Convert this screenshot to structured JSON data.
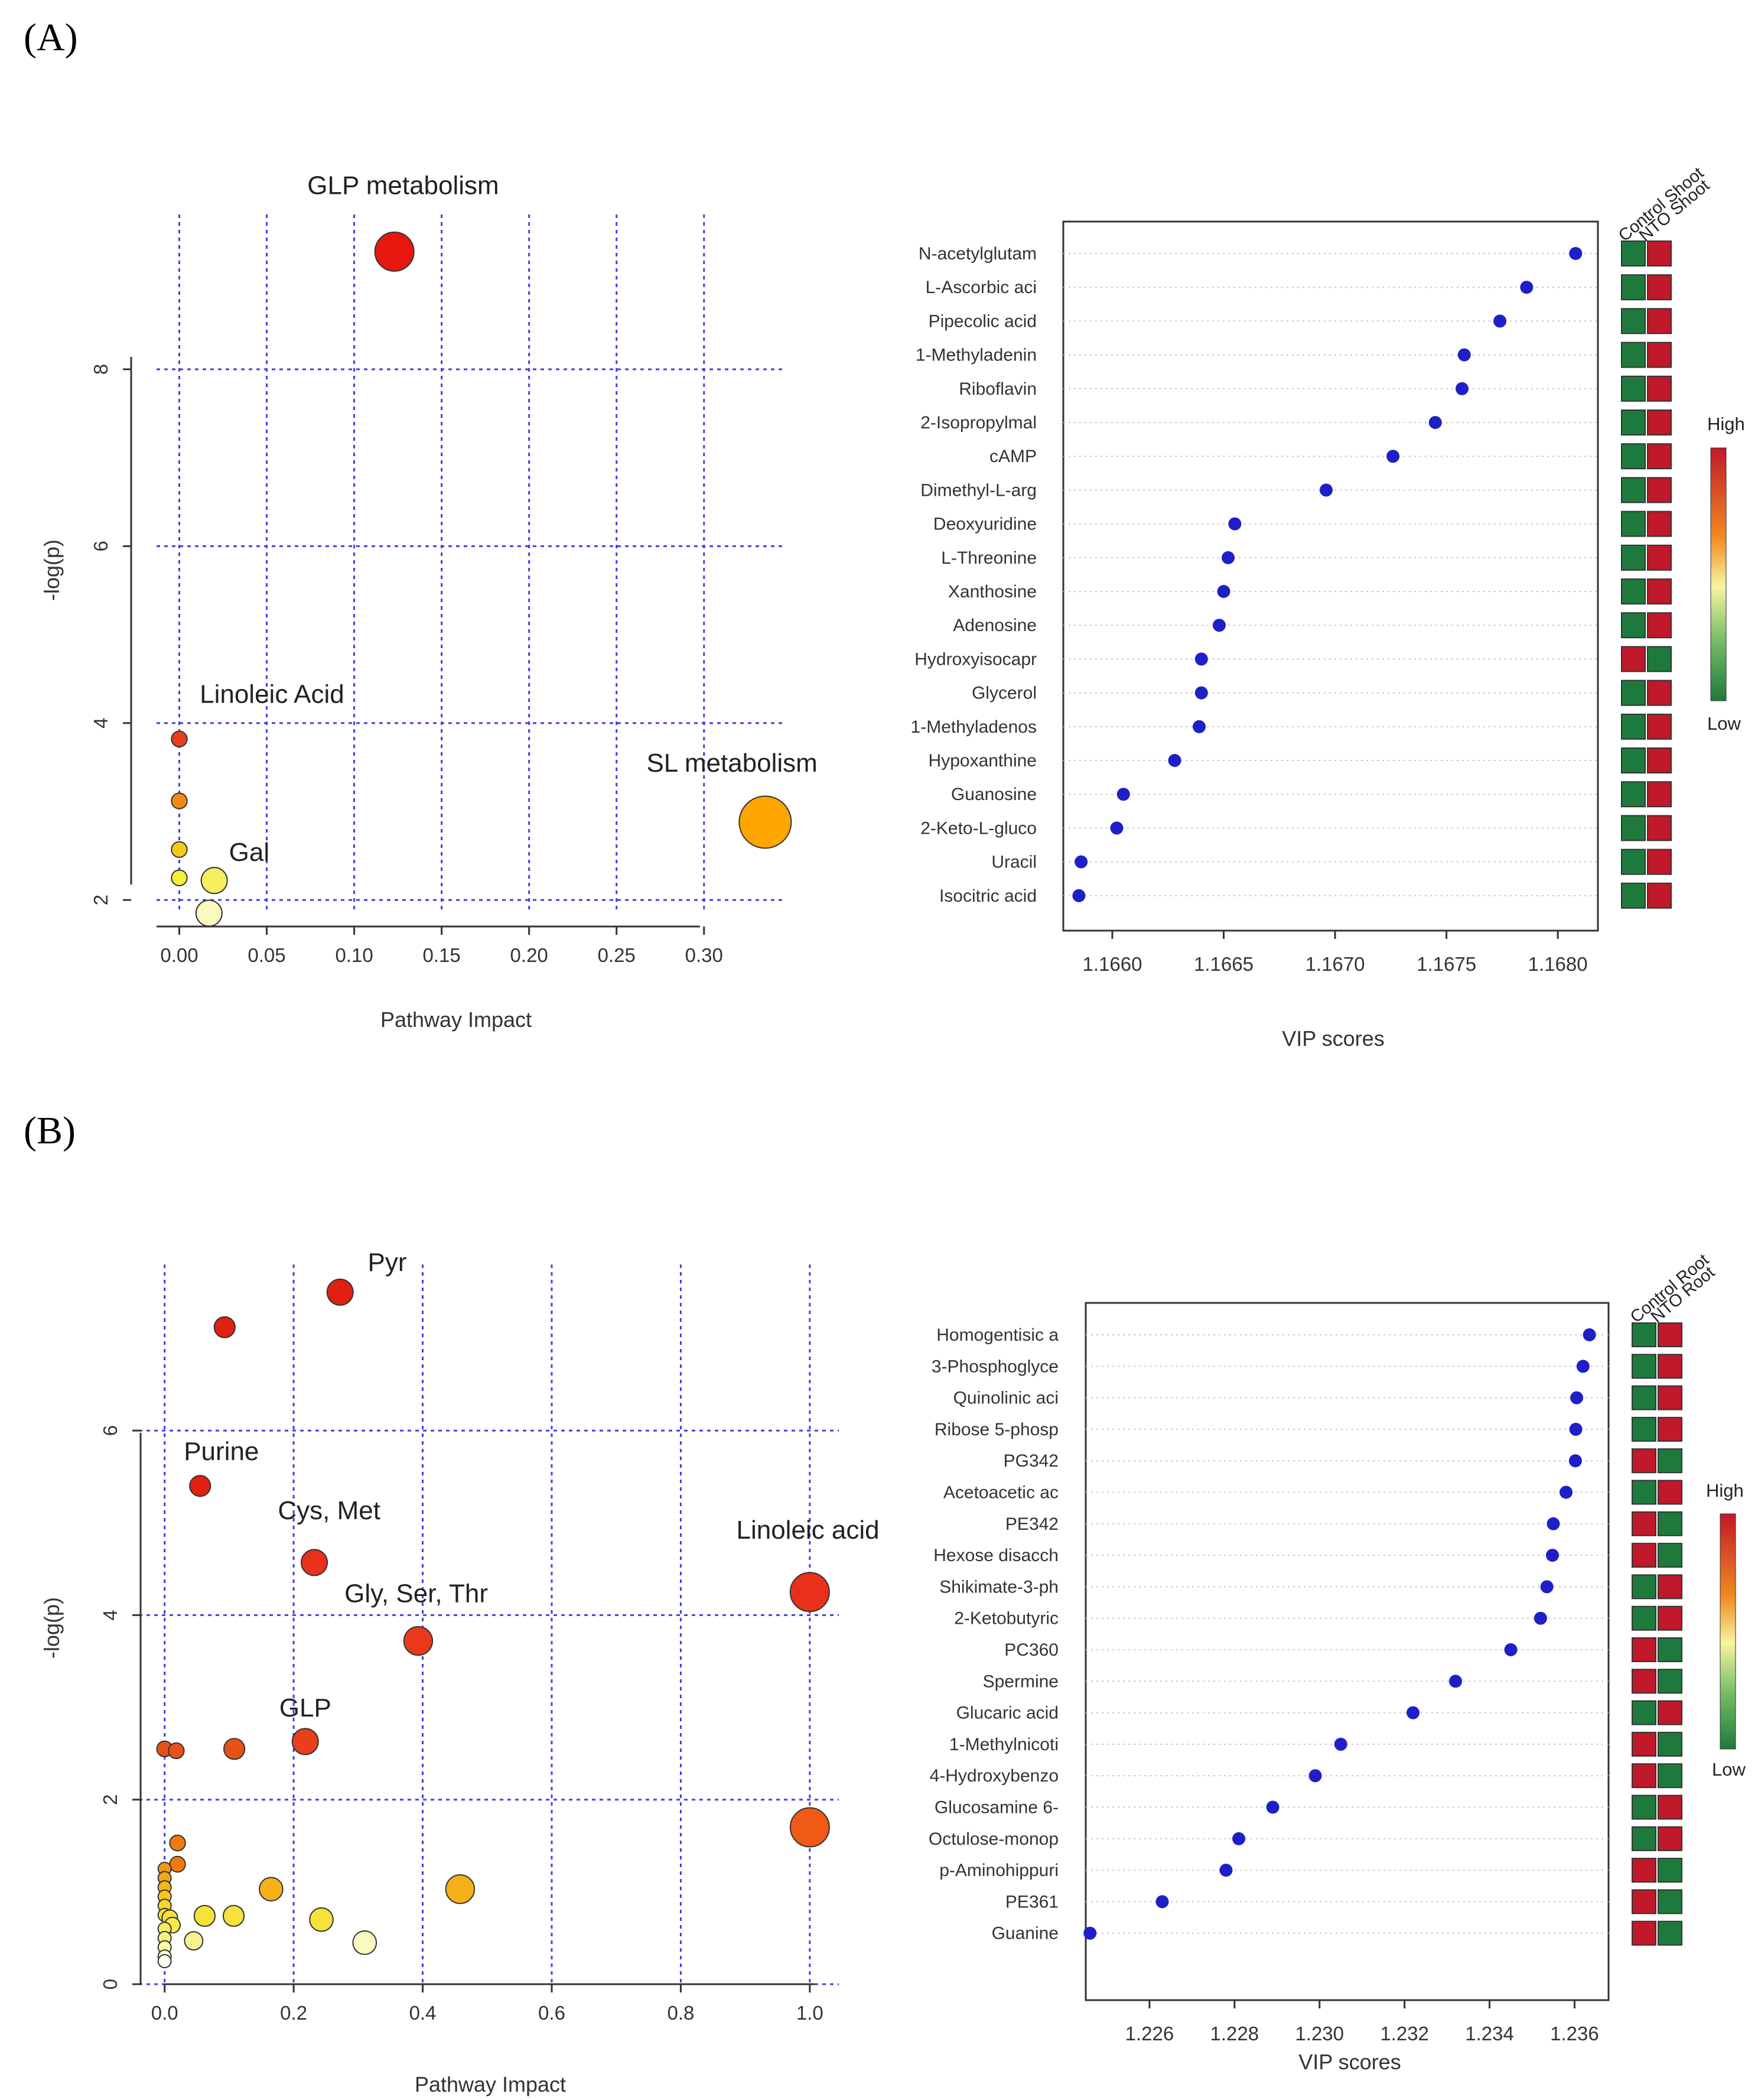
{
  "figure": {
    "panel_a_label": "(A)",
    "panel_b_label": "(B)"
  },
  "colors": {
    "high": "#c0192a",
    "low": "#1e7a3c",
    "grid": "#4040e0",
    "vip_dot": "#1f1fc8"
  },
  "chart_data": [
    {
      "id": "A-pathway",
      "type": "scatter",
      "title": "",
      "xlabel": "Pathway Impact",
      "ylabel": "-log(p)",
      "xlim": [
        -0.013,
        0.345
      ],
      "ylim": [
        1.7,
        9.75
      ],
      "xticks": [
        0.0,
        0.05,
        0.1,
        0.15,
        0.2,
        0.25,
        0.3
      ],
      "xtick_labels": [
        "0.00",
        "0.05",
        "0.10",
        "0.15",
        "0.20",
        "0.25",
        "0.30"
      ],
      "yticks": [
        2,
        4,
        6,
        8
      ],
      "ytick_labels": [
        "2",
        "4",
        "6",
        "8"
      ],
      "points": [
        {
          "x": 0.123,
          "y": 9.33,
          "size": 1.5,
          "color": "#e8170f"
        },
        {
          "x": 0.0,
          "y": 3.82,
          "size": 0.6,
          "color": "#e8401a"
        },
        {
          "x": 0.0,
          "y": 3.12,
          "size": 0.6,
          "color": "#f08a10"
        },
        {
          "x": 0.0,
          "y": 2.57,
          "size": 0.6,
          "color": "#f5c91a"
        },
        {
          "x": 0.0,
          "y": 2.25,
          "size": 0.6,
          "color": "#f5ef3a"
        },
        {
          "x": 0.02,
          "y": 2.22,
          "size": 1.0,
          "color": "#f5ef60"
        },
        {
          "x": 0.017,
          "y": 1.85,
          "size": 1.0,
          "color": "#fafac0"
        },
        {
          "x": 0.335,
          "y": 2.88,
          "size": 2.0,
          "color": "#ffa500"
        }
      ],
      "annotations": [
        {
          "text": "GLP metabolism",
          "x": 0.128,
          "y": 9.98
        },
        {
          "text": "Linoleic Acid",
          "x": 0.053,
          "y": 4.23
        },
        {
          "text": "SL metabolism",
          "x": 0.316,
          "y": 3.45
        },
        {
          "text": "Gal",
          "x": 0.04,
          "y": 2.44
        }
      ]
    },
    {
      "id": "A-vip",
      "type": "scatter",
      "title": "",
      "xlabel": "VIP scores",
      "xlim": [
        1.16578,
        1.16818
      ],
      "xticks": [
        1.166,
        1.1665,
        1.167,
        1.1675,
        1.168
      ],
      "xtick_labels": [
        "1.1660",
        "1.1665",
        "1.1670",
        "1.1675",
        "1.1680"
      ],
      "group_labels": [
        "Control Shoot",
        "NTO Shoot"
      ],
      "legend": {
        "high": "High",
        "low": "Low"
      },
      "metabolites": [
        "N-acetylglutam",
        "L-Ascorbic aci",
        "Pipecolic acid",
        "1-Methyladenin",
        "Riboflavin",
        "2-Isopropylmal",
        "cAMP",
        "Dimethyl-L-arg",
        "Deoxyuridine",
        "L-Threonine",
        "Xanthosine",
        "Adenosine",
        "Hydroxyisocapr",
        "Glycerol",
        "1-Methyladenos",
        "Hypoxanthine",
        "Guanosine",
        "2-Keto-L-gluco",
        "Uracil",
        "Isocitric acid"
      ],
      "values": [
        1.16808,
        1.16786,
        1.16774,
        1.16758,
        1.16757,
        1.16745,
        1.16726,
        1.16696,
        1.16655,
        1.16652,
        1.1665,
        1.16648,
        1.1664,
        1.1664,
        1.16639,
        1.16628,
        1.16605,
        1.16602,
        1.16586,
        1.16585
      ],
      "heatmap": [
        [
          "low",
          "high"
        ],
        [
          "low",
          "high"
        ],
        [
          "low",
          "high"
        ],
        [
          "low",
          "high"
        ],
        [
          "low",
          "high"
        ],
        [
          "low",
          "high"
        ],
        [
          "low",
          "high"
        ],
        [
          "low",
          "high"
        ],
        [
          "low",
          "high"
        ],
        [
          "low",
          "high"
        ],
        [
          "low",
          "high"
        ],
        [
          "low",
          "high"
        ],
        [
          "high",
          "low"
        ],
        [
          "low",
          "high"
        ],
        [
          "low",
          "high"
        ],
        [
          "low",
          "high"
        ],
        [
          "low",
          "high"
        ],
        [
          "low",
          "high"
        ],
        [
          "low",
          "high"
        ],
        [
          "low",
          "high"
        ]
      ]
    },
    {
      "id": "B-pathway",
      "type": "scatter",
      "title": "",
      "xlabel": "Pathway Impact",
      "ylabel": "-log(p)",
      "xlim": [
        -0.04,
        1.045
      ],
      "ylim": [
        0,
        7.8
      ],
      "xticks": [
        0.0,
        0.2,
        0.4,
        0.6,
        0.8,
        1.0
      ],
      "xtick_labels": [
        "0.0",
        "0.2",
        "0.4",
        "0.6",
        "0.8",
        "1.0"
      ],
      "yticks": [
        0,
        2,
        4,
        6
      ],
      "ytick_labels": [
        "0",
        "2",
        "4",
        "6"
      ],
      "points": [
        {
          "x": 0.272,
          "y": 7.5,
          "size": 1.0,
          "color": "#e02010"
        },
        {
          "x": 0.093,
          "y": 7.12,
          "size": 0.8,
          "color": "#e02010"
        },
        {
          "x": 0.055,
          "y": 5.4,
          "size": 0.8,
          "color": "#e02010"
        },
        {
          "x": 0.232,
          "y": 4.57,
          "size": 1.0,
          "color": "#e8301a"
        },
        {
          "x": 1.0,
          "y": 4.25,
          "size": 1.5,
          "color": "#e8301a"
        },
        {
          "x": 0.393,
          "y": 3.72,
          "size": 1.1,
          "color": "#e83a1a"
        },
        {
          "x": 0.218,
          "y": 2.63,
          "size": 1.0,
          "color": "#e8401a"
        },
        {
          "x": 0.0,
          "y": 2.55,
          "size": 0.6,
          "color": "#e8501a"
        },
        {
          "x": 0.018,
          "y": 2.53,
          "size": 0.6,
          "color": "#e8501a"
        },
        {
          "x": 0.108,
          "y": 2.55,
          "size": 0.8,
          "color": "#e8501a"
        },
        {
          "x": 1.0,
          "y": 1.7,
          "size": 1.5,
          "color": "#f05a16"
        },
        {
          "x": 0.02,
          "y": 1.53,
          "size": 0.6,
          "color": "#f07a10"
        },
        {
          "x": 0.02,
          "y": 1.3,
          "size": 0.6,
          "color": "#f07a10"
        },
        {
          "x": 0.0,
          "y": 1.25,
          "size": 0.5,
          "color": "#f09a10"
        },
        {
          "x": 0.0,
          "y": 1.15,
          "size": 0.5,
          "color": "#f0a812"
        },
        {
          "x": 0.0,
          "y": 1.05,
          "size": 0.5,
          "color": "#f5b81a"
        },
        {
          "x": 0.165,
          "y": 1.03,
          "size": 0.9,
          "color": "#f5b01a"
        },
        {
          "x": 0.458,
          "y": 1.03,
          "size": 1.1,
          "color": "#f5b01a"
        },
        {
          "x": 0.0,
          "y": 0.95,
          "size": 0.5,
          "color": "#f5c81a"
        },
        {
          "x": 0.0,
          "y": 0.85,
          "size": 0.5,
          "color": "#f5d82a"
        },
        {
          "x": 0.0,
          "y": 0.75,
          "size": 0.5,
          "color": "#f5e23a"
        },
        {
          "x": 0.008,
          "y": 0.72,
          "size": 0.6,
          "color": "#f5e23a"
        },
        {
          "x": 0.062,
          "y": 0.74,
          "size": 0.8,
          "color": "#f5e23a"
        },
        {
          "x": 0.107,
          "y": 0.74,
          "size": 0.8,
          "color": "#f5e23a"
        },
        {
          "x": 0.243,
          "y": 0.7,
          "size": 0.9,
          "color": "#f5e23a"
        },
        {
          "x": 0.012,
          "y": 0.64,
          "size": 0.6,
          "color": "#f5ea4a"
        },
        {
          "x": 0.0,
          "y": 0.6,
          "size": 0.5,
          "color": "#f5ef60"
        },
        {
          "x": 0.0,
          "y": 0.5,
          "size": 0.5,
          "color": "#f8f280"
        },
        {
          "x": 0.045,
          "y": 0.47,
          "size": 0.7,
          "color": "#f8f290"
        },
        {
          "x": 0.31,
          "y": 0.45,
          "size": 0.9,
          "color": "#fafac0"
        },
        {
          "x": 0.0,
          "y": 0.4,
          "size": 0.5,
          "color": "#fafaa8"
        },
        {
          "x": 0.0,
          "y": 0.3,
          "size": 0.5,
          "color": "#fcfcd0"
        },
        {
          "x": 0.0,
          "y": 0.25,
          "size": 0.5,
          "color": "#fefef0"
        }
      ],
      "annotations": [
        {
          "text": "Pyr",
          "x": 0.345,
          "y": 7.73
        },
        {
          "text": "Purine",
          "x": 0.088,
          "y": 5.68
        },
        {
          "text": "Cys, Met",
          "x": 0.255,
          "y": 5.04
        },
        {
          "text": "Linoleic acid",
          "x": 0.997,
          "y": 4.83
        },
        {
          "text": "Gly, Ser, Thr",
          "x": 0.39,
          "y": 4.14
        },
        {
          "text": "GLP",
          "x": 0.218,
          "y": 2.9
        }
      ]
    },
    {
      "id": "B-vip",
      "type": "scatter",
      "title": "",
      "xlabel": "VIP scores",
      "xlim": [
        1.2245,
        1.2368
      ],
      "xticks": [
        1.226,
        1.228,
        1.23,
        1.232,
        1.234,
        1.236
      ],
      "xtick_labels": [
        "1.226",
        "1.228",
        "1.230",
        "1.232",
        "1.234",
        "1.236"
      ],
      "group_labels": [
        "Control Root",
        "NTO Root"
      ],
      "legend": {
        "high": "High",
        "low": "Low"
      },
      "metabolites": [
        "Homogentisic a",
        "3-Phosphoglyce",
        "Quinolinic aci",
        "Ribose 5-phosp",
        "PG342",
        "Acetoacetic ac",
        "PE342",
        "Hexose disacch",
        "Shikimate-3-ph",
        "2-Ketobutyric",
        "PC360",
        "Spermine",
        "Glucaric acid",
        "1-Methylnicoti",
        "4-Hydroxybenzo",
        "Glucosamine 6-",
        "Octulose-monop",
        "p-Aminohippuri",
        "PE361",
        "Guanine"
      ],
      "values": [
        1.23635,
        1.2362,
        1.23605,
        1.23603,
        1.23602,
        1.2358,
        1.2355,
        1.23548,
        1.23535,
        1.2352,
        1.2345,
        1.2332,
        1.2322,
        1.2305,
        1.2299,
        1.2289,
        1.2281,
        1.2278,
        1.2263,
        1.2246
      ],
      "heatmap": [
        [
          "low",
          "high"
        ],
        [
          "low",
          "high"
        ],
        [
          "low",
          "high"
        ],
        [
          "low",
          "high"
        ],
        [
          "high",
          "low"
        ],
        [
          "low",
          "high"
        ],
        [
          "high",
          "low"
        ],
        [
          "high",
          "low"
        ],
        [
          "low",
          "high"
        ],
        [
          "low",
          "high"
        ],
        [
          "high",
          "low"
        ],
        [
          "high",
          "low"
        ],
        [
          "low",
          "high"
        ],
        [
          "high",
          "low"
        ],
        [
          "high",
          "low"
        ],
        [
          "low",
          "high"
        ],
        [
          "low",
          "high"
        ],
        [
          "high",
          "low"
        ],
        [
          "high",
          "low"
        ],
        [
          "high",
          "low"
        ]
      ]
    }
  ]
}
